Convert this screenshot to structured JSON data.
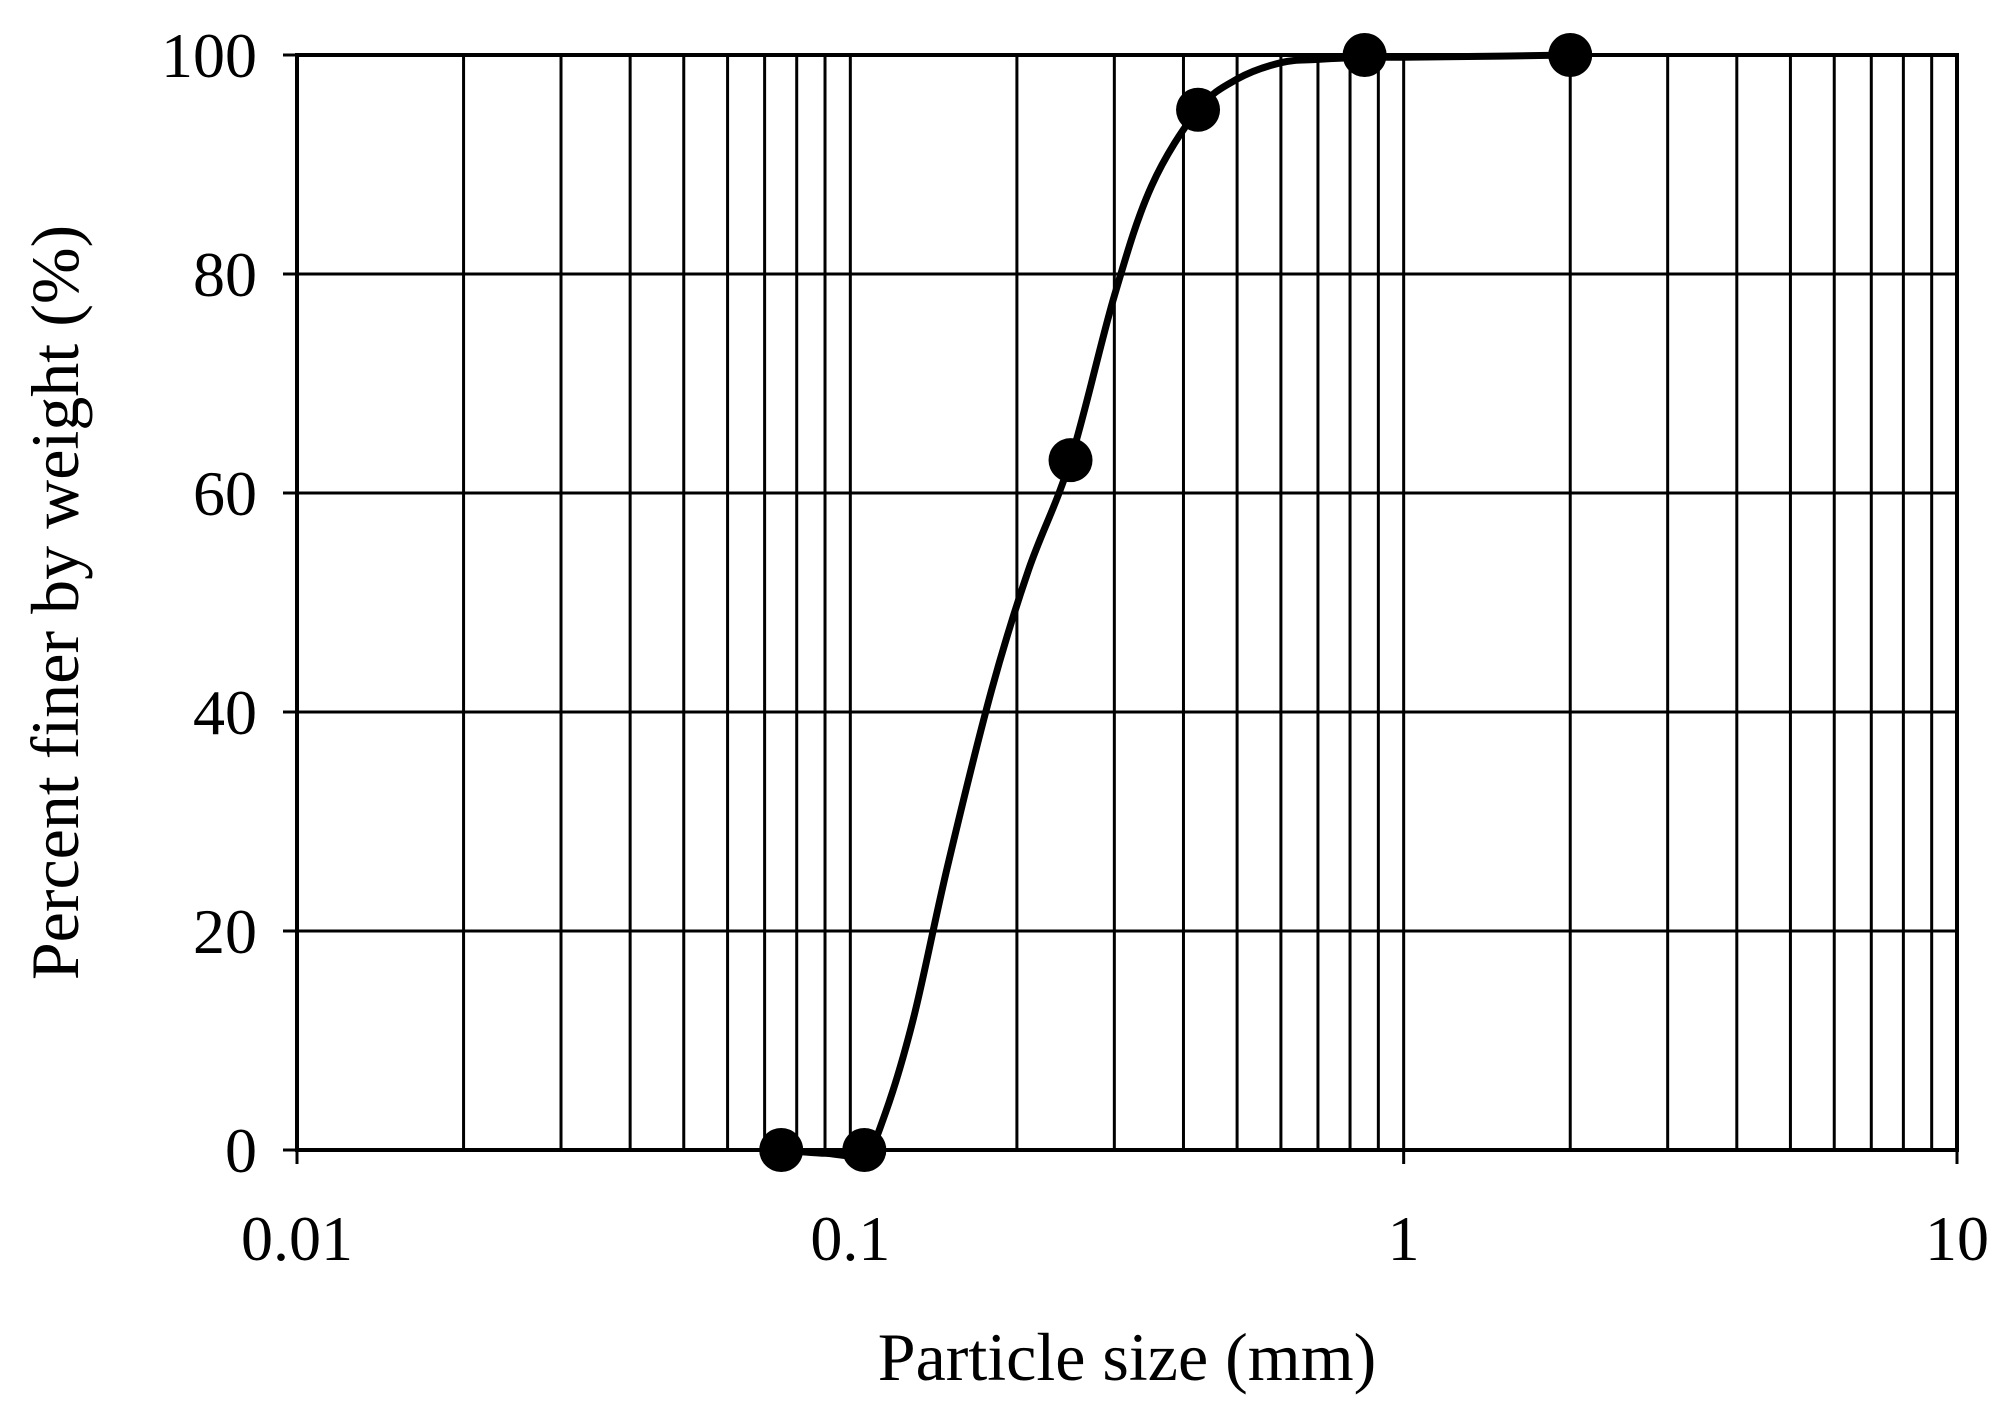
{
  "chart_data": {
    "type": "scatter",
    "title": "",
    "xlabel": "Particle size (mm)",
    "ylabel": "Percent finer by weight (%)",
    "xscale": "log",
    "xlim": [
      0.01,
      10
    ],
    "ylim": [
      0,
      100
    ],
    "x_ticks": [
      "0.01",
      "0.1",
      "1",
      "10"
    ],
    "y_ticks": [
      "0",
      "20",
      "40",
      "60",
      "80",
      "100"
    ],
    "grid": true,
    "legend": "none",
    "series": [
      {
        "x": [
          0.075,
          0.106,
          0.25,
          0.425,
          0.85,
          2.0
        ],
        "y": [
          0,
          0,
          63,
          95,
          100,
          100
        ]
      }
    ],
    "curve": {
      "x": [
        0.075,
        0.09,
        0.106,
        0.115,
        0.13,
        0.15,
        0.18,
        0.21,
        0.25,
        0.3,
        0.35,
        0.425,
        0.5,
        0.6,
        0.7,
        0.85,
        1.0,
        1.5,
        2.0
      ],
      "y": [
        0,
        -0.3,
        -0.3,
        3,
        12,
        26,
        42,
        53,
        63,
        78,
        88,
        95,
        97.8,
        99.3,
        99.6,
        99.8,
        99.8,
        99.9,
        100
      ]
    },
    "colors": {
      "line": "#000000",
      "marker": "#000000",
      "grid": "#000000",
      "background": "#ffffff"
    }
  }
}
